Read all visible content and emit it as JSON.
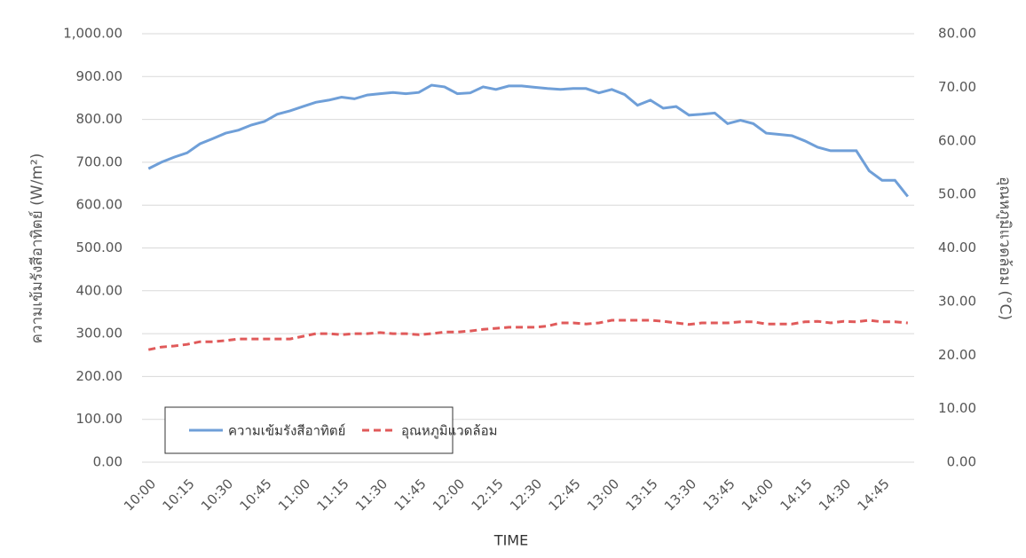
{
  "chart_data": {
    "type": "line",
    "x_label": "TIME",
    "y_label": "ความเข้มรังสีอาทิตย์ (W/m²)",
    "y2_label": "อุณหภูมิแวดล้อม (°C)",
    "categories": [
      "10:00",
      null,
      null,
      "10:15",
      null,
      null,
      "10:30",
      null,
      null,
      "10:45",
      null,
      null,
      "11:00",
      null,
      null,
      "11:15",
      null,
      null,
      "11:30",
      null,
      null,
      "11:45",
      null,
      null,
      "12:00",
      null,
      null,
      "12:15",
      null,
      null,
      "12:30",
      null,
      null,
      "12:45",
      null,
      null,
      "13:00",
      null,
      null,
      "13:15",
      null,
      null,
      "13:30",
      null,
      null,
      "13:45",
      null,
      null,
      "14:00",
      null,
      null,
      "14:15",
      null,
      null,
      "14:30",
      null,
      null,
      "14:45",
      null,
      null
    ],
    "series": [
      {
        "name": "ความเข้มรังสีอาทิตย์",
        "color": "#6f9fd8",
        "dashed": false,
        "values": [
          685,
          700,
          712,
          722,
          743,
          755,
          768,
          775,
          787,
          795,
          812,
          820,
          830,
          840,
          845,
          852,
          848,
          857,
          860,
          863,
          860,
          863,
          880,
          876,
          860,
          862,
          876,
          870,
          878,
          878,
          875,
          872,
          870,
          872,
          872,
          862,
          870,
          858,
          833,
          845,
          826,
          830,
          810,
          812,
          815,
          790,
          798,
          790,
          768,
          765,
          762,
          750,
          735,
          727,
          727,
          727,
          680,
          658,
          658,
          620
        ]
      },
      {
        "name": "อุณหภูมิแวดล้อม",
        "color": "#e05a5a",
        "dashed": true,
        "axis": "y2",
        "values": [
          21.0,
          21.5,
          21.7,
          22.0,
          22.5,
          22.5,
          22.7,
          23.0,
          23.0,
          23.0,
          23.0,
          23.0,
          23.5,
          24.0,
          24.0,
          23.8,
          24.0,
          24.0,
          24.2,
          24.0,
          24.0,
          23.8,
          24.0,
          24.3,
          24.3,
          24.5,
          24.8,
          25.0,
          25.2,
          25.2,
          25.2,
          25.4,
          26.0,
          26.0,
          25.8,
          26.0,
          26.5,
          26.5,
          26.5,
          26.5,
          26.3,
          26.0,
          25.7,
          26.0,
          26.0,
          26.0,
          26.2,
          26.2,
          25.8,
          25.8,
          25.8,
          26.2,
          26.3,
          26.0,
          26.3,
          26.2,
          26.5,
          26.2,
          26.2,
          26.0
        ]
      }
    ],
    "ylim": [
      0,
      1000
    ],
    "yticks": [
      {
        "value": 0,
        "label": "0.00"
      },
      {
        "value": 100,
        "label": "100.00"
      },
      {
        "value": 200,
        "label": "200.00"
      },
      {
        "value": 300,
        "label": "300.00"
      },
      {
        "value": 400,
        "label": "400.00"
      },
      {
        "value": 500,
        "label": "500.00"
      },
      {
        "value": 600,
        "label": "600.00"
      },
      {
        "value": 700,
        "label": "700.00"
      },
      {
        "value": 800,
        "label": "800.00"
      },
      {
        "value": 900,
        "label": "900.00"
      },
      {
        "value": 1000,
        "label": "1,000.00"
      }
    ],
    "y2lim": [
      0,
      80
    ],
    "y2ticks": [
      {
        "value": 0,
        "label": "0.00"
      },
      {
        "value": 10,
        "label": "10.00"
      },
      {
        "value": 20,
        "label": "20.00"
      },
      {
        "value": 30,
        "label": "30.00"
      },
      {
        "value": 40,
        "label": "40.00"
      },
      {
        "value": 50,
        "label": "50.00"
      },
      {
        "value": 60,
        "label": "60.00"
      },
      {
        "value": 70,
        "label": "70.00"
      },
      {
        "value": 80,
        "label": "80.00"
      }
    ],
    "grid": true,
    "legend": "lower left"
  }
}
